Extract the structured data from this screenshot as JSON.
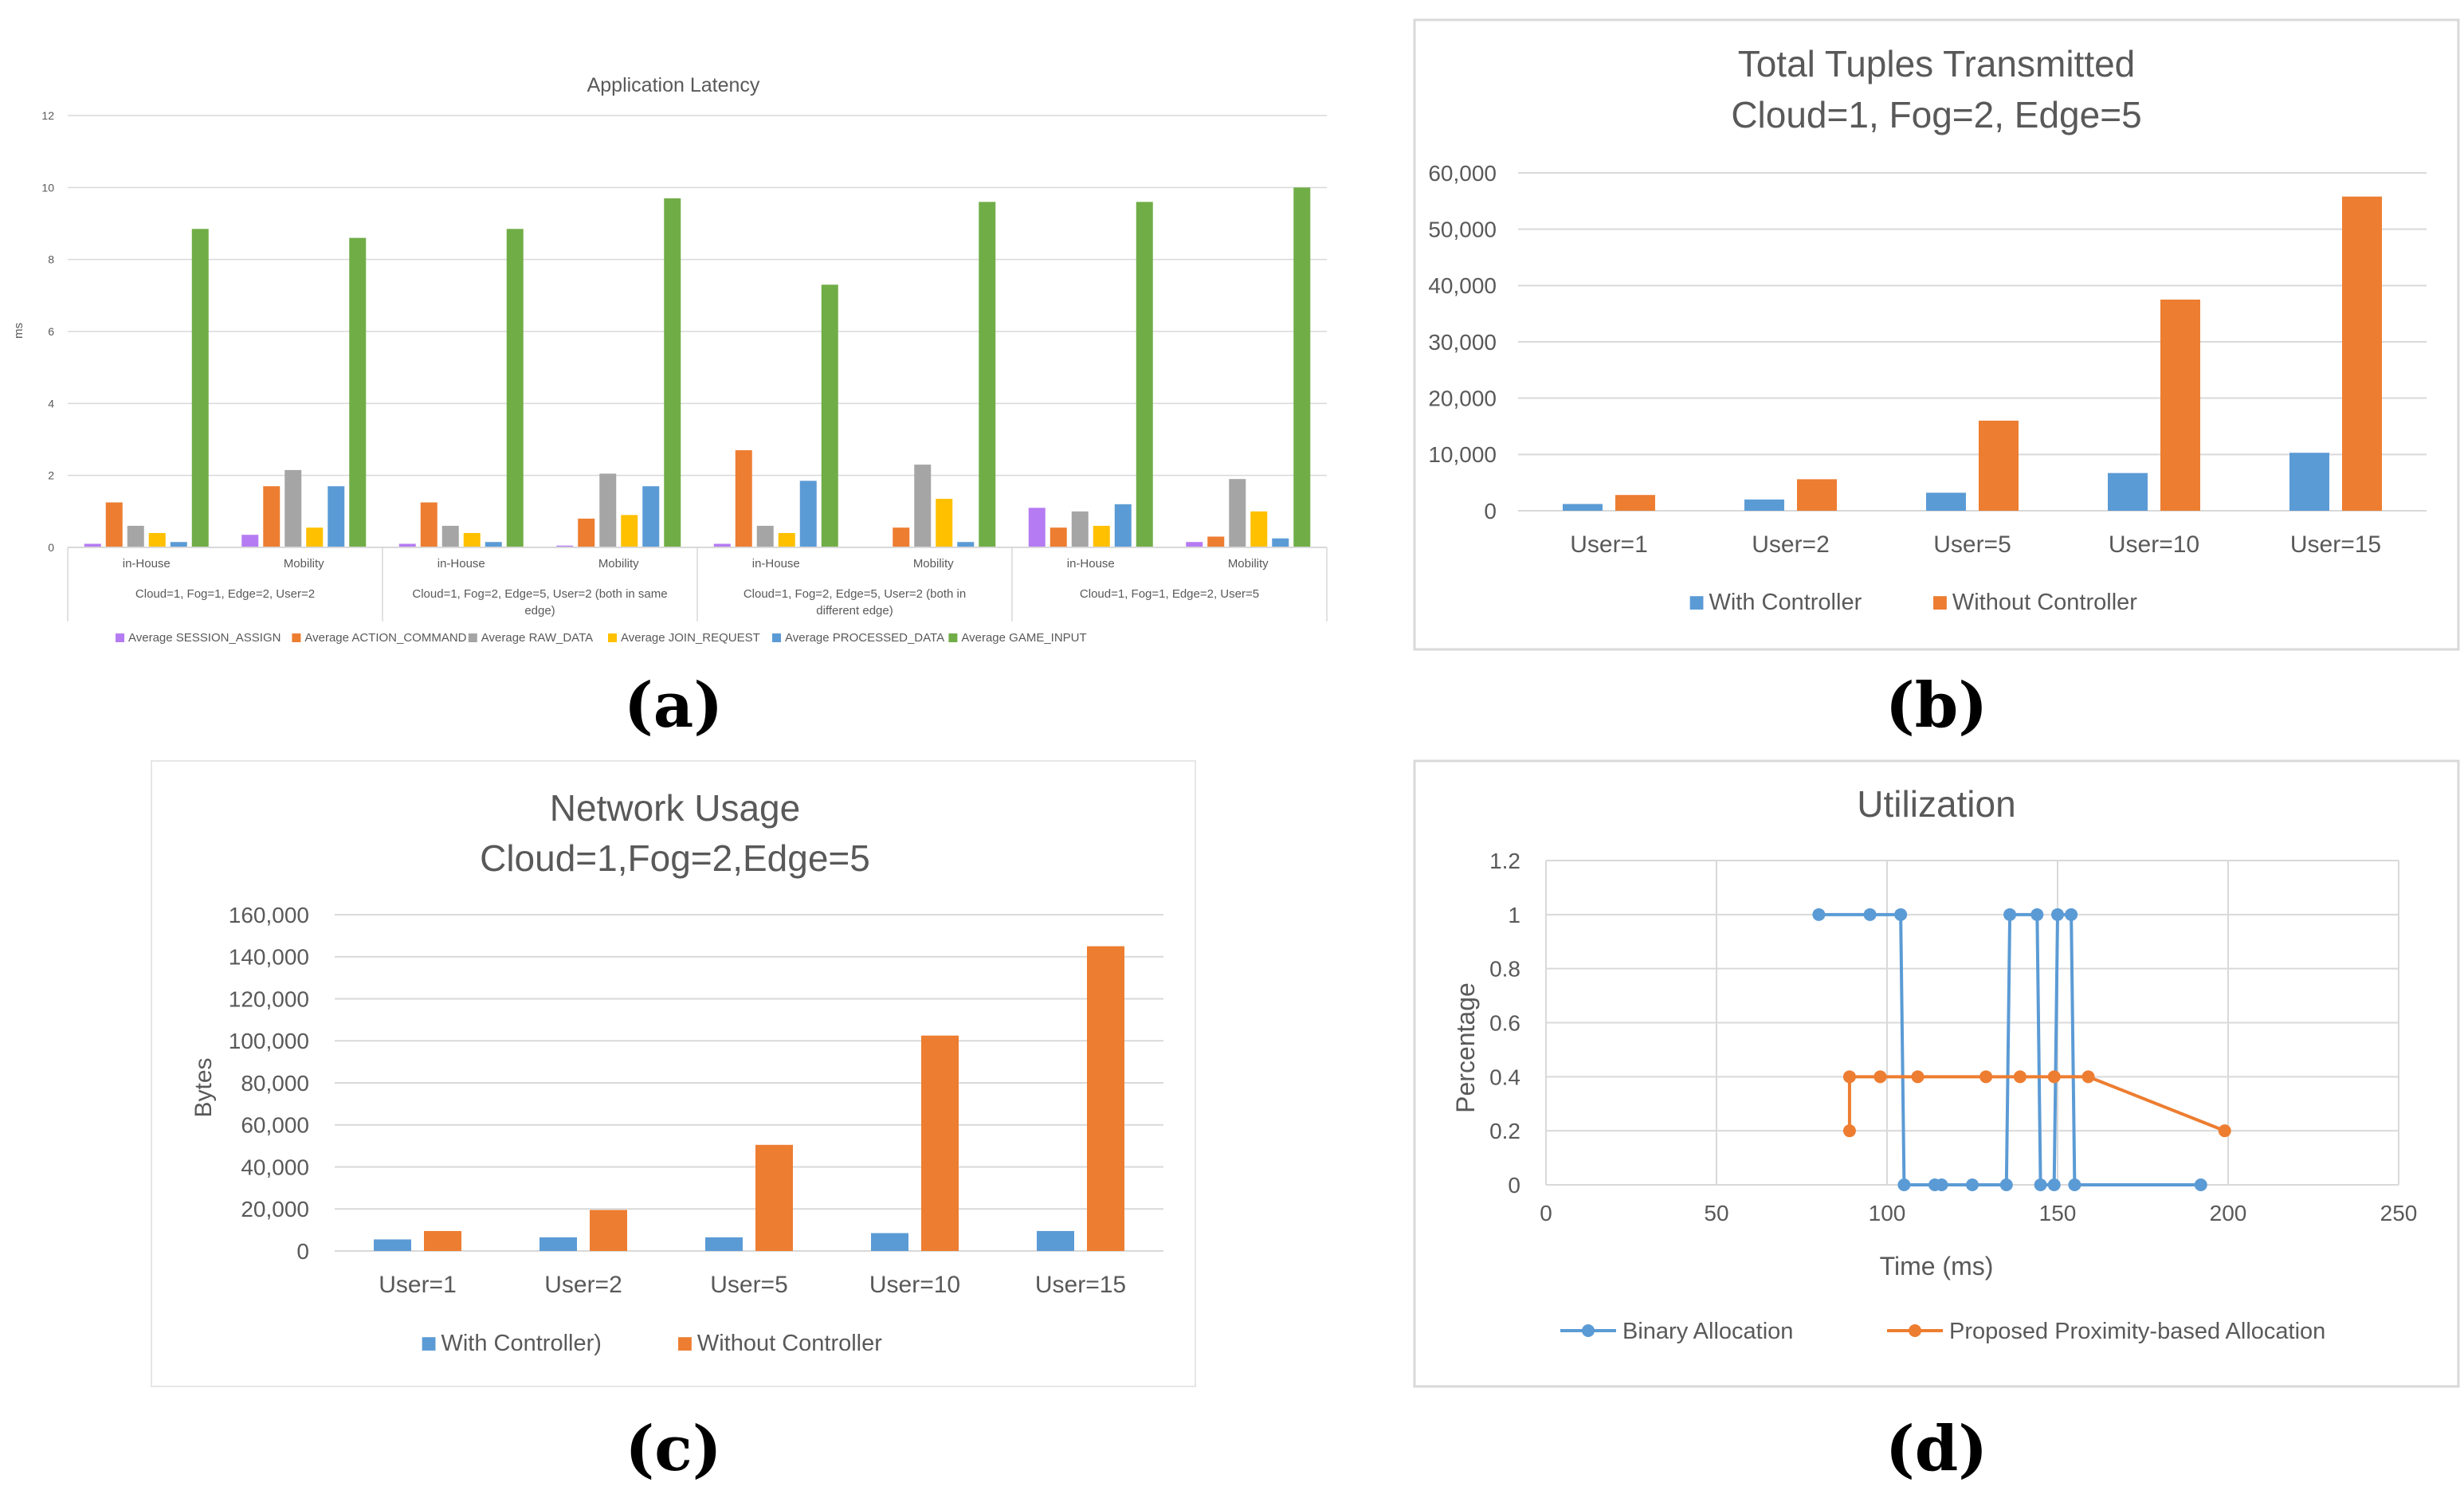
{
  "panel_labels": [
    "(a)",
    "(b)",
    "(c)",
    "(d)"
  ],
  "colors": {
    "session": "#b57bf2",
    "action": "#ed7d31",
    "raw": "#a5a5a5",
    "join": "#ffc000",
    "processed": "#5b9bd5",
    "game": "#70ad47",
    "blue": "#5b9bd5",
    "orange": "#ed7d31",
    "grid": "#d9d9d9",
    "axis_text": "#595959"
  },
  "chart_data": [
    {
      "id": "a",
      "type": "bar",
      "title": "Application Latency",
      "ylabel": "ms",
      "ylim": [
        0,
        12
      ],
      "yticks": [
        0,
        2,
        4,
        6,
        8,
        10,
        12
      ],
      "categories": [
        "in-House",
        "Mobility",
        "in-House",
        "Mobility",
        "in-House",
        "Mobility",
        "in-House",
        "Mobility"
      ],
      "groups": [
        "Cloud=1, Fog=1, Edge=2, User=2",
        "Cloud=1, Fog=2, Edge=5, User=2 (both in same edge)",
        "Cloud=1, Fog=2, Edge=5, User=2 (both in different edge)",
        "Cloud=1, Fog=1, Edge=2, User=5"
      ],
      "series": [
        {
          "name": "Average SESSION_ASSIGN",
          "color": "#b57bf2",
          "values": [
            0.1,
            0.35,
            0.1,
            0.05,
            0.1,
            0.0,
            1.1,
            0.15
          ]
        },
        {
          "name": "Average ACTION_COMMAND",
          "color": "#ed7d31",
          "values": [
            1.25,
            1.7,
            1.25,
            0.8,
            2.7,
            0.55,
            0.55,
            0.3
          ]
        },
        {
          "name": "Average RAW_DATA",
          "color": "#a5a5a5",
          "values": [
            0.6,
            2.15,
            0.6,
            2.05,
            0.6,
            2.3,
            1.0,
            1.9
          ]
        },
        {
          "name": "Average JOIN_REQUEST",
          "color": "#ffc000",
          "values": [
            0.4,
            0.55,
            0.4,
            0.9,
            0.4,
            1.35,
            0.6,
            1.0
          ]
        },
        {
          "name": "Average PROCESSED_DATA",
          "color": "#5b9bd5",
          "values": [
            0.15,
            1.7,
            0.15,
            1.7,
            1.85,
            0.15,
            1.2,
            0.25
          ]
        },
        {
          "name": "Average GAME_INPUT",
          "color": "#70ad47",
          "values": [
            8.85,
            8.6,
            8.85,
            9.7,
            7.3,
            9.6,
            9.6,
            10.0
          ]
        }
      ],
      "legend": "bottom",
      "grid": true
    },
    {
      "id": "b",
      "type": "bar",
      "title": "Total Tuples Transmitted",
      "subtitle": "Cloud=1, Fog=2, Edge=5",
      "categories": [
        "User=1",
        "User=2",
        "User=5",
        "User=10",
        "User=15"
      ],
      "ylim": [
        0,
        60000
      ],
      "yticks": [
        0,
        10000,
        20000,
        30000,
        40000,
        50000,
        60000
      ],
      "ytick_labels": [
        "0",
        "10,000",
        "20,000",
        "30,000",
        "40,000",
        "50,000",
        "60,000"
      ],
      "series": [
        {
          "name": "With Controller",
          "color": "#5b9bd5",
          "values": [
            1200,
            2000,
            3200,
            6700,
            10300
          ]
        },
        {
          "name": "Without Controller",
          "color": "#ed7d31",
          "values": [
            2800,
            5600,
            16000,
            37500,
            55800
          ]
        }
      ],
      "legend": "bottom",
      "grid": true
    },
    {
      "id": "c",
      "type": "bar",
      "title": "Network Usage",
      "subtitle": "Cloud=1,Fog=2,Edge=5",
      "ylabel": "Bytes",
      "categories": [
        "User=1",
        "User=2",
        "User=5",
        "User=10",
        "User=15"
      ],
      "ylim": [
        0,
        160000
      ],
      "yticks": [
        0,
        20000,
        40000,
        60000,
        80000,
        100000,
        120000,
        140000,
        160000
      ],
      "ytick_labels": [
        "0",
        "20,000",
        "40,000",
        "60,000",
        "80,000",
        "100,000",
        "120,000",
        "140,000",
        "160,000"
      ],
      "series": [
        {
          "name": "With Controller)",
          "color": "#5b9bd5",
          "values": [
            5500,
            6500,
            6500,
            8500,
            9500
          ]
        },
        {
          "name": "Without Controller",
          "color": "#ed7d31",
          "values": [
            9500,
            19500,
            50500,
            102500,
            145000
          ]
        }
      ],
      "legend": "bottom",
      "grid": true
    },
    {
      "id": "d",
      "type": "line",
      "title": "Utilization",
      "xlabel": "Time (ms)",
      "ylabel": "Percentage",
      "xlim": [
        0,
        250
      ],
      "ylim": [
        0,
        1.2
      ],
      "xticks": [
        0,
        50,
        100,
        150,
        200,
        250
      ],
      "yticks": [
        0,
        0.2,
        0.4,
        0.6,
        0.8,
        1,
        1.2
      ],
      "ytick_labels": [
        "0",
        "0.2",
        "0.4",
        "0.6",
        "0.8",
        "1",
        "1.2"
      ],
      "series": [
        {
          "name": "Binary Allocation",
          "color": "#5b9bd5",
          "x": [
            80,
            95,
            104,
            105,
            114,
            116,
            125,
            135,
            136,
            144,
            145,
            149,
            150,
            154,
            155,
            192
          ],
          "y": [
            1,
            1,
            1,
            0,
            0,
            0,
            0,
            0,
            1,
            1,
            0,
            0,
            1,
            1,
            0,
            0
          ]
        },
        {
          "name": "Proposed Proximity-based Allocation",
          "color": "#ed7d31",
          "x": [
            89,
            89,
            98,
            109,
            129,
            139,
            149,
            159,
            199
          ],
          "y": [
            0.2,
            0.4,
            0.4,
            0.4,
            0.4,
            0.4,
            0.4,
            0.4,
            0.2
          ]
        }
      ],
      "legend": "bottom",
      "grid": true
    }
  ]
}
